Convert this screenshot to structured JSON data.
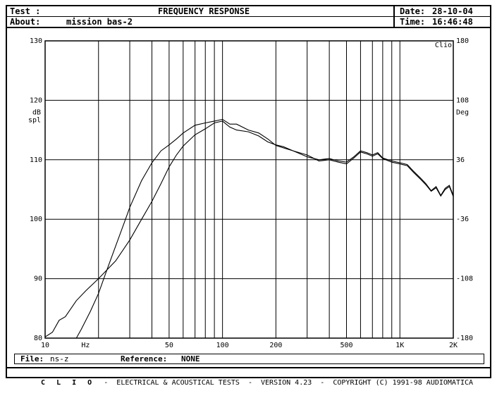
{
  "header": {
    "test_label": "Test :",
    "title": "FREQUENCY RESPONSE",
    "about_label": "About:",
    "about_value": "mission bas-2",
    "date_label": "Date:",
    "date_value": "28-10-04",
    "time_label": "Time:",
    "time_value": "16:46:48"
  },
  "file_bar": {
    "file_label": "File:",
    "file_value": "ns-z",
    "reference_label": "Reference:",
    "reference_value": "NONE"
  },
  "footer": {
    "brand": "C L I O",
    "text": "-  ELECTRICAL & ACOUSTICAL TESTS  -  VERSION 4.23  -  COPYRIGHT (C) 1991-98 AUDIOMATICA"
  },
  "chart_data": {
    "type": "line",
    "title": "FREQUENCY RESPONSE",
    "x_scale": "log",
    "xlim": [
      10,
      2000
    ],
    "x_ticks": [
      {
        "value": 10,
        "label": "10"
      },
      {
        "value": 50,
        "label": "50"
      },
      {
        "value": 100,
        "label": "100"
      },
      {
        "value": 200,
        "label": "200"
      },
      {
        "value": 500,
        "label": "500"
      },
      {
        "value": 1000,
        "label": "1K"
      },
      {
        "value": 2000,
        "label": "2K"
      }
    ],
    "x_unit": "Hz",
    "ylabel": "dB spl",
    "ylim": [
      80,
      130
    ],
    "y_ticks": [
      80,
      90,
      100,
      110,
      120,
      130
    ],
    "y2label": "Deg",
    "y2lim": [
      -180,
      180
    ],
    "y2_ticks": [
      -180,
      -108,
      -36,
      36,
      108,
      180
    ],
    "corner_label": "Clio",
    "grid": true,
    "series": [
      {
        "x": [
          10,
          11,
          12,
          13,
          15,
          17,
          20,
          25,
          30,
          35,
          40,
          45,
          50,
          55,
          60,
          70,
          80,
          90,
          100,
          110,
          120,
          140,
          160,
          180,
          200,
          220,
          250,
          300,
          350,
          400,
          450,
          500,
          550,
          600,
          650,
          700,
          750,
          800,
          900,
          1000,
          1100,
          1200,
          1300,
          1400,
          1500,
          1600,
          1700,
          1800,
          1900,
          2000
        ],
        "values": [
          80.2,
          81.0,
          83.0,
          83.6,
          86.3,
          88.0,
          90.0,
          93.0,
          96.5,
          100.0,
          103.0,
          106.0,
          108.8,
          110.8,
          112.3,
          114.2,
          115.2,
          116.2,
          116.5,
          115.5,
          115.0,
          114.7,
          114.0,
          113.0,
          112.5,
          112.2,
          111.5,
          110.5,
          110.0,
          110.2,
          109.8,
          109.6,
          110.5,
          111.5,
          111.2,
          110.8,
          111.2,
          110.3,
          109.8,
          109.5,
          109.2,
          108.0,
          107.0,
          106.0,
          104.8,
          105.5,
          104.0,
          105.2,
          105.7,
          104.0
        ]
      },
      {
        "x": [
          15,
          16,
          18,
          20,
          22,
          25,
          28,
          30,
          35,
          40,
          45,
          50,
          55,
          60,
          70,
          80,
          90,
          100,
          110,
          120,
          140,
          160,
          180,
          200,
          220,
          250,
          300,
          350,
          400,
          450,
          500,
          550,
          600,
          650,
          700,
          750,
          800,
          900,
          1000,
          1100,
          1200,
          1300,
          1400,
          1500,
          1600,
          1700,
          1800,
          1900,
          2000
        ],
        "values": [
          80.0,
          81.5,
          84.5,
          87.5,
          91.0,
          95.5,
          99.5,
          102.0,
          106.5,
          109.5,
          111.5,
          112.5,
          113.5,
          114.5,
          115.8,
          116.2,
          116.5,
          116.8,
          116.0,
          116.0,
          115.0,
          114.5,
          113.5,
          112.4,
          112.0,
          111.5,
          110.8,
          109.8,
          110.0,
          109.6,
          109.3,
          110.3,
          111.3,
          111.0,
          110.6,
          111.0,
          110.2,
          109.6,
          109.3,
          109.0,
          107.8,
          106.8,
          105.8,
          104.7,
          105.3,
          103.9,
          105.0,
          105.5,
          103.8
        ]
      }
    ]
  }
}
